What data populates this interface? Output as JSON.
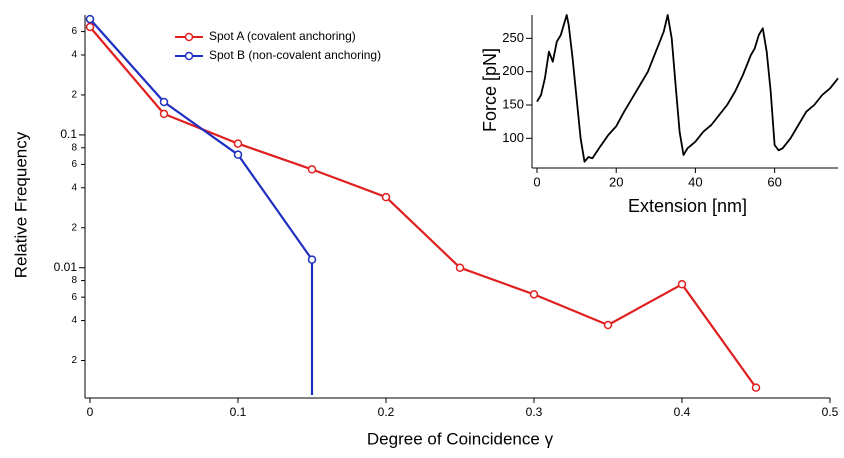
{
  "chart_data": [
    {
      "type": "line",
      "x_label": "Degree of Coincidence γ",
      "y_label": "Relative Frequency",
      "log_y": true,
      "markers": true,
      "legend": "top-left",
      "xlim": [
        0,
        0.5
      ],
      "ylim": [
        0.0011,
        0.8
      ],
      "xticks": [
        0,
        0.1,
        0.2,
        0.3,
        0.4,
        0.5
      ],
      "yticks": [
        {
          "value": 0.6,
          "label": "6"
        },
        {
          "value": 0.4,
          "label": "4"
        },
        {
          "value": 0.2,
          "label": "2"
        },
        0.1,
        {
          "value": 0.08,
          "label": "8"
        },
        {
          "value": 0.06,
          "label": "6"
        },
        {
          "value": 0.04,
          "label": "4"
        },
        {
          "value": 0.02,
          "label": "2"
        },
        0.01,
        {
          "value": 0.008,
          "label": "8"
        },
        {
          "value": 0.006,
          "label": "6"
        },
        {
          "value": 0.004,
          "label": "4"
        },
        {
          "value": 0.002,
          "label": "2"
        }
      ],
      "series": [
        {
          "name": "Spot A (covalent anchoring)",
          "color": "#e02020",
          "x": [
            0,
            0.05,
            0.1,
            0.15,
            0.2,
            0.25,
            0.3,
            0.35,
            0.4,
            0.45
          ],
          "values": [
            0.65,
            0.144,
            0.086,
            0.055,
            0.034,
            0.01,
            0.0063,
            0.0037,
            0.0075,
            0.00125
          ]
        },
        {
          "name": "Spot B (non-covalent anchoring)",
          "color": "#1f2fbf",
          "x": [
            0,
            0.05,
            0.1,
            0.15,
            0.15
          ],
          "values": [
            0.745,
            0.177,
            0.071,
            0.0115,
            0
          ]
        }
      ]
    },
    {
      "type": "line",
      "x_label": "Extension [nm]",
      "y_label": "Force [pN]",
      "log_y": false,
      "markers": false,
      "xlim": [
        0,
        76
      ],
      "ylim": [
        60,
        285
      ],
      "xticks": [
        0,
        20,
        40,
        60
      ],
      "yticks": [
        100,
        150,
        200,
        250
      ],
      "series": [
        {
          "color": "#000000",
          "x": [
            0,
            1,
            2,
            3,
            4,
            5,
            6,
            7,
            7.5,
            8,
            9,
            10,
            11,
            12,
            13,
            14,
            16,
            18,
            20,
            22,
            24,
            26,
            28,
            30,
            31,
            32,
            33,
            34,
            35,
            36,
            37,
            38,
            40,
            42,
            44,
            46,
            48,
            50,
            52,
            54,
            55,
            56,
            57,
            58,
            59,
            60,
            61,
            62,
            64,
            66,
            68,
            70,
            72,
            74,
            76
          ],
          "values": [
            155,
            165,
            190,
            230,
            215,
            245,
            255,
            275,
            285,
            270,
            220,
            160,
            100,
            65,
            72,
            70,
            88,
            105,
            118,
            140,
            160,
            180,
            200,
            230,
            245,
            260,
            285,
            250,
            180,
            110,
            75,
            85,
            95,
            110,
            120,
            135,
            150,
            170,
            195,
            225,
            235,
            255,
            265,
            230,
            170,
            90,
            82,
            85,
            100,
            120,
            140,
            150,
            165,
            175,
            190
          ]
        }
      ]
    }
  ]
}
